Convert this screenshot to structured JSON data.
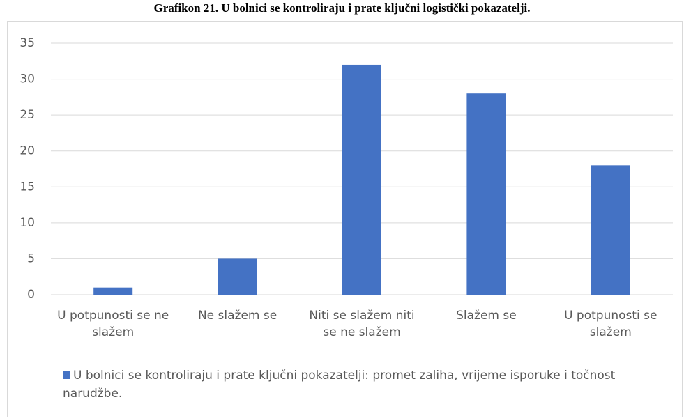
{
  "chart_data": {
    "type": "bar",
    "title": "Grafikon 21. U bolnici se kontroliraju i prate ključni logistički pokazatelji.",
    "categories": [
      "U potpunosti se ne slažem",
      "Ne slažem se",
      "Niti se slažem niti se ne slažem",
      "Slažem se",
      "U potpunosti se slažem"
    ],
    "series": [
      {
        "name": "U bolnici se kontroliraju i prate ključni pokazatelji: promet zaliha, vrijeme isporuke i točnost narudžbe.",
        "color": "#4472c4",
        "values": [
          1,
          5,
          32,
          28,
          18
        ]
      }
    ],
    "ylim": [
      0,
      35
    ],
    "yticks": [
      0,
      5,
      10,
      15,
      20,
      25,
      30,
      35
    ],
    "grid": true,
    "legend": "bottom"
  }
}
